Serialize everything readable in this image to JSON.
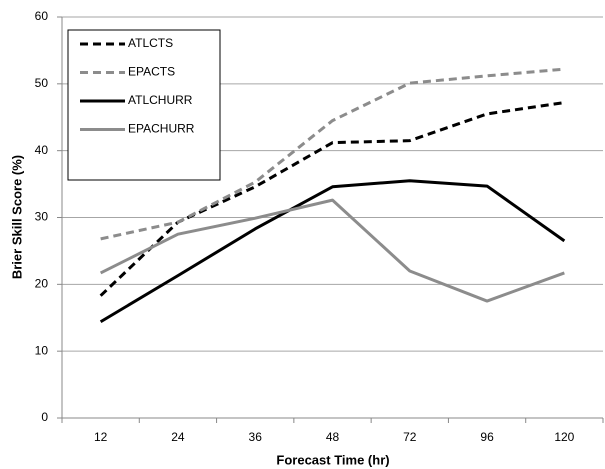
{
  "chart_data": {
    "type": "line",
    "x_label": "Forecast Time (hr)",
    "y_label": "Brier Skill Score (%)",
    "categories": [
      "12",
      "24",
      "36",
      "48",
      "72",
      "96",
      "120"
    ],
    "series": [
      {
        "name": "ATLCTS",
        "color": "#000000",
        "dashed": true,
        "values": [
          18.3,
          29.3,
          34.6,
          41.2,
          41.5,
          45.5,
          47.2
        ]
      },
      {
        "name": "EPACTS",
        "color": "#8c8c8c",
        "dashed": true,
        "values": [
          26.8,
          29.3,
          35.3,
          44.5,
          50.1,
          51.2,
          52.2
        ]
      },
      {
        "name": "ATLCHURR",
        "color": "#000000",
        "dashed": false,
        "values": [
          14.4,
          21.3,
          28.3,
          34.6,
          35.5,
          34.7,
          26.5
        ]
      },
      {
        "name": "EPACHURR",
        "color": "#8c8c8c",
        "dashed": false,
        "values": [
          21.7,
          27.5,
          29.9,
          32.6,
          22.0,
          17.5,
          21.7
        ]
      }
    ],
    "ylim": [
      0,
      60
    ],
    "yticks": [
      0,
      10,
      20,
      30,
      40,
      50,
      60
    ],
    "grid": true,
    "legend": "upper left"
  }
}
